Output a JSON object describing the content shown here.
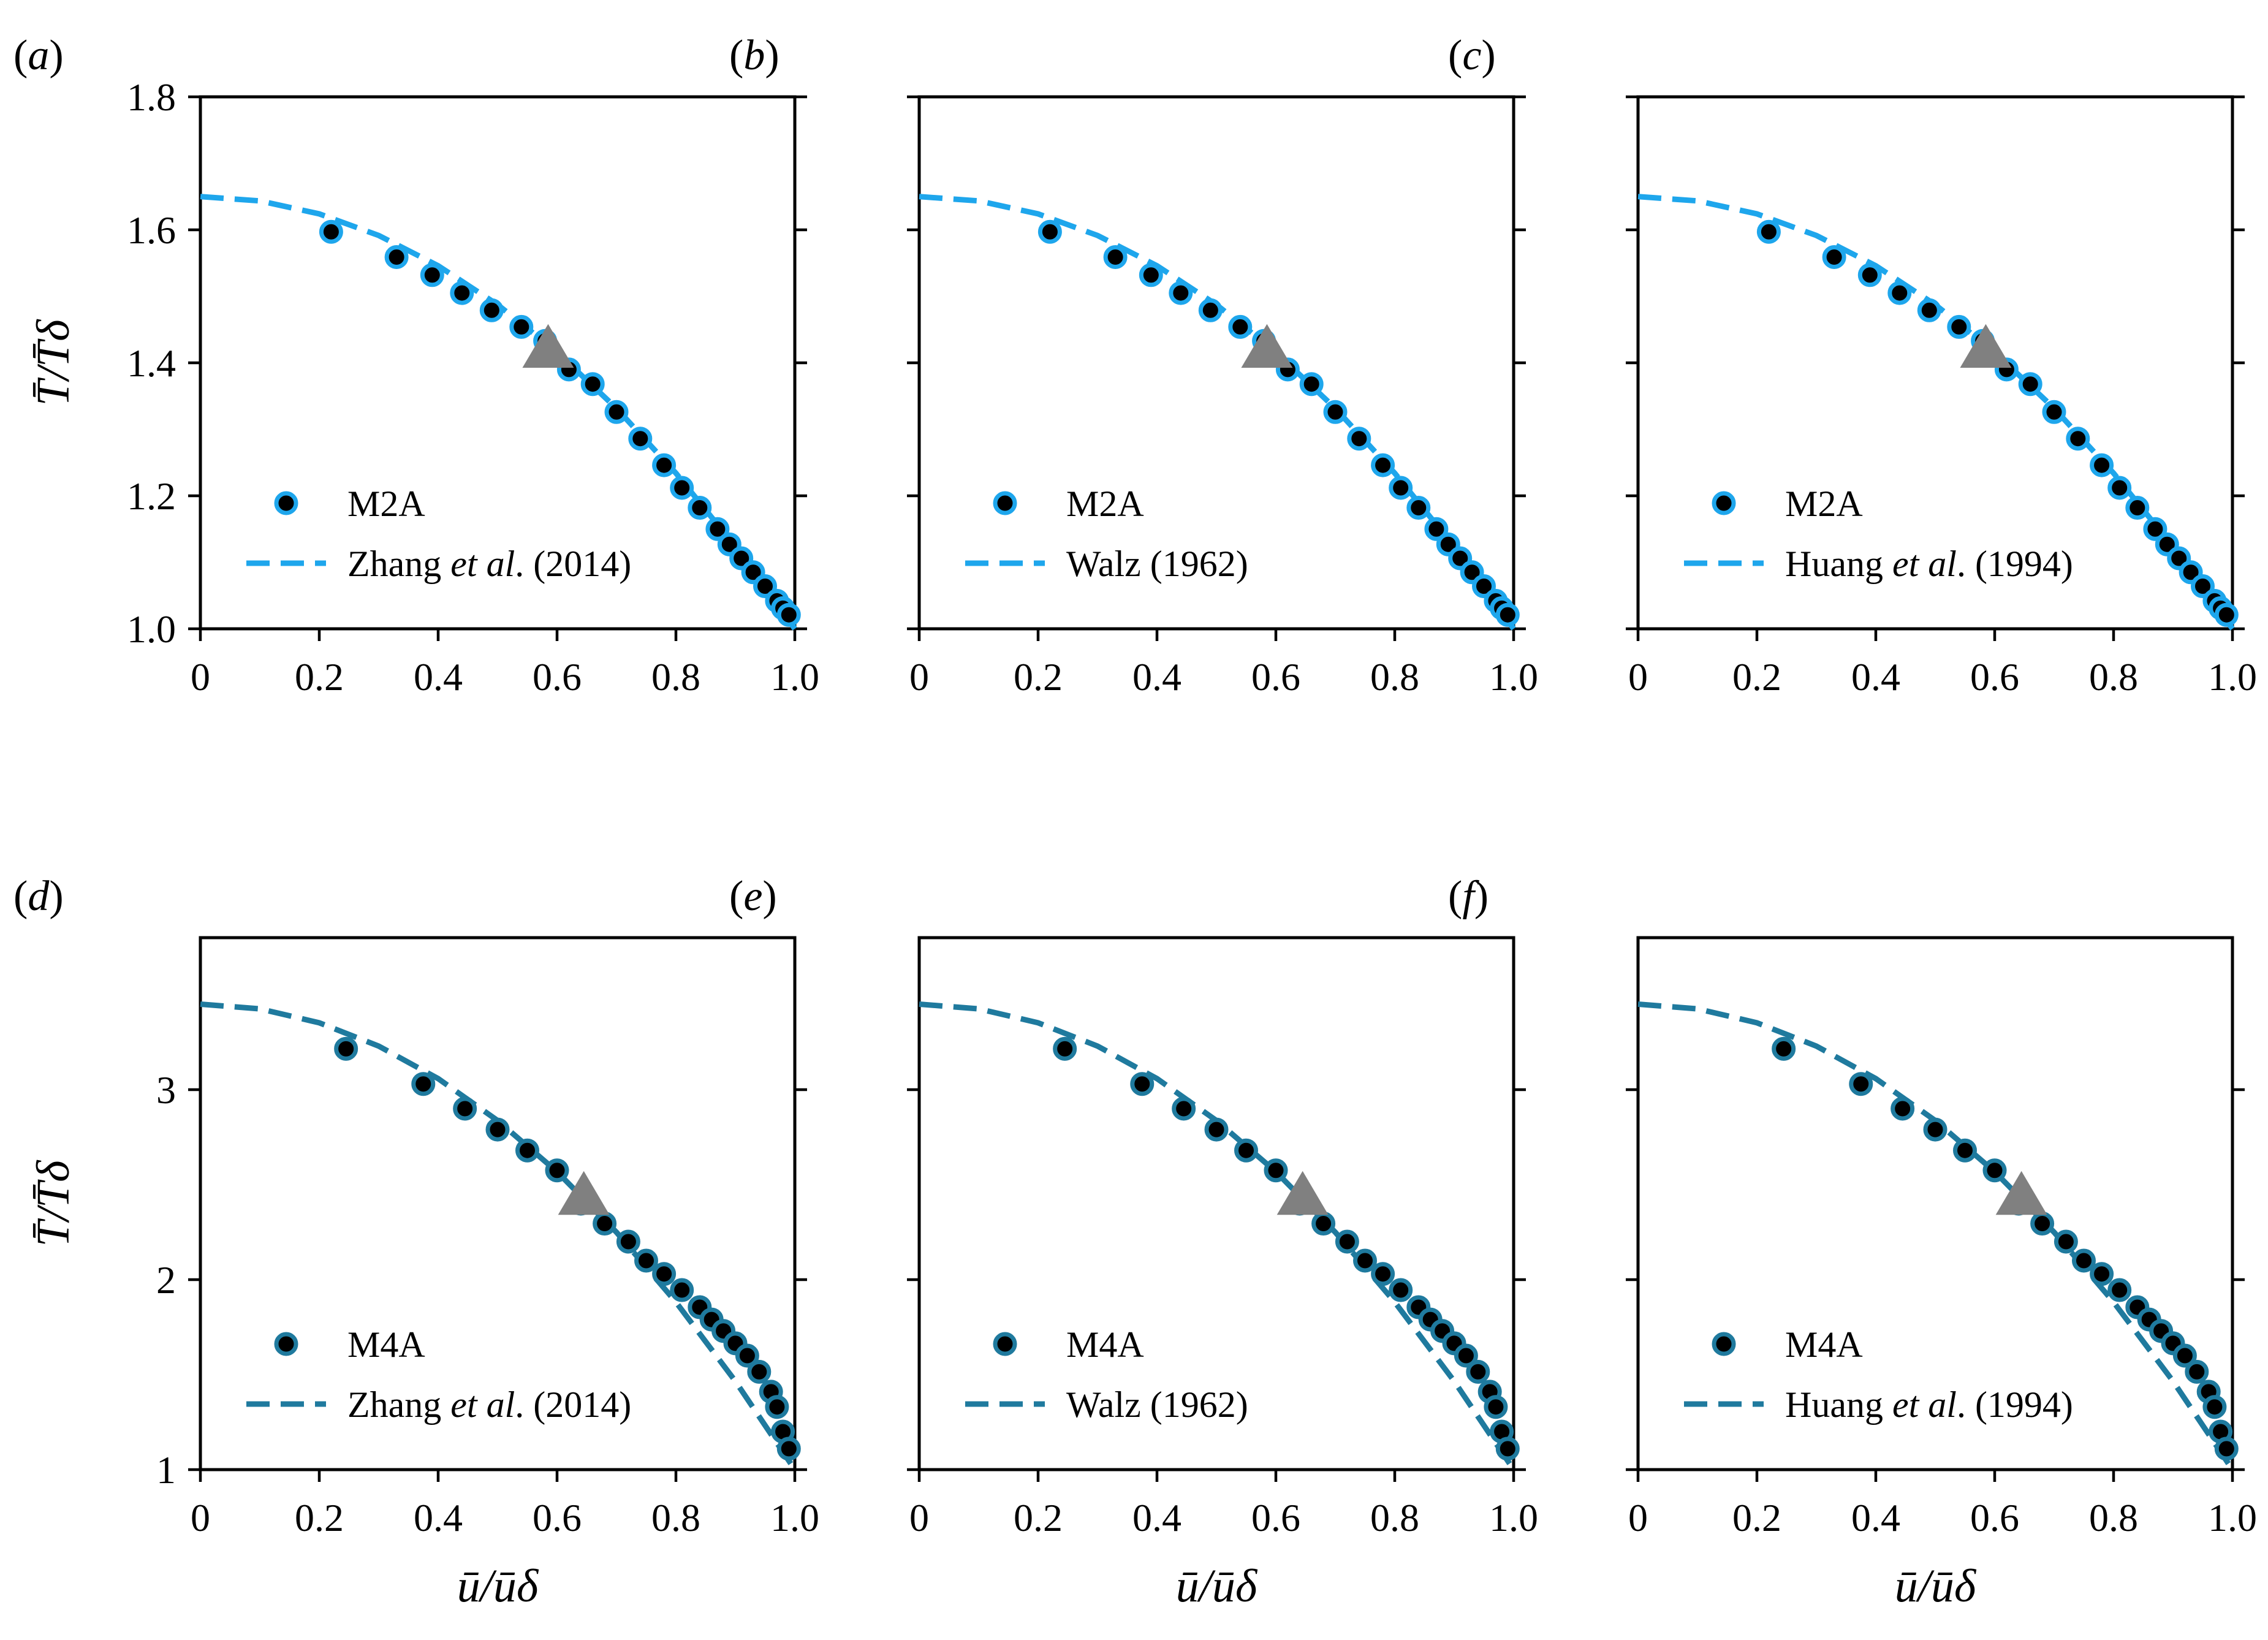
{
  "chart_data": [
    {
      "type": "scatter",
      "panel": "(a)",
      "ylabel": "T̄/T̄δ",
      "xlabel": "",
      "xlim": [
        0,
        1.0
      ],
      "ylim": [
        1.0,
        1.8
      ],
      "xticks": [
        "0",
        "0.2",
        "0.4",
        "0.6",
        "0.8",
        "1.0"
      ],
      "yticks": [
        "1.0",
        "1.2",
        "1.4",
        "1.6",
        "1.8"
      ],
      "legend_position": "lower-left",
      "series": [
        {
          "name": "M2A",
          "kind": "markers",
          "color": "#1ea6ec",
          "x": [
            0.22,
            0.33,
            0.39,
            0.44,
            0.49,
            0.54,
            0.58,
            0.62,
            0.66,
            0.7,
            0.74,
            0.78,
            0.81,
            0.84,
            0.87,
            0.89,
            0.91,
            0.93,
            0.95,
            0.97,
            0.98,
            0.99
          ],
          "y": [
            1.597,
            1.559,
            1.532,
            1.505,
            1.479,
            1.454,
            1.433,
            1.39,
            1.368,
            1.326,
            1.286,
            1.246,
            1.212,
            1.182,
            1.15,
            1.127,
            1.106,
            1.085,
            1.064,
            1.042,
            1.031,
            1.021
          ]
        },
        {
          "name": "Zhang et al. (2014)",
          "kind": "dashed-line",
          "color": "#1ea6ec",
          "x": [
            0,
            0.1,
            0.2,
            0.3,
            0.4,
            0.5,
            0.6,
            0.7,
            0.8,
            0.9,
            1.0
          ],
          "y": [
            1.65,
            1.6435,
            1.624,
            1.5915,
            1.546,
            1.4875,
            1.416,
            1.3315,
            1.234,
            1.1235,
            1.0
          ]
        },
        {
          "name": "",
          "kind": "triangle-marker",
          "color": "#808080",
          "x": [
            0.585
          ],
          "y": [
            1.415
          ]
        }
      ]
    },
    {
      "type": "scatter",
      "panel": "(b)",
      "ylabel": "",
      "xlabel": "",
      "xlim": [
        0,
        1.0
      ],
      "ylim": [
        1.0,
        1.8
      ],
      "xticks": [
        "0",
        "0.2",
        "0.4",
        "0.6",
        "0.8",
        "1.0"
      ],
      "yticks": [],
      "legend_position": "lower-left",
      "series": [
        {
          "name": "M2A",
          "kind": "markers",
          "color": "#1ea6ec",
          "x": [
            0.22,
            0.33,
            0.39,
            0.44,
            0.49,
            0.54,
            0.58,
            0.62,
            0.66,
            0.7,
            0.74,
            0.78,
            0.81,
            0.84,
            0.87,
            0.89,
            0.91,
            0.93,
            0.95,
            0.97,
            0.98,
            0.99
          ],
          "y": [
            1.597,
            1.559,
            1.532,
            1.505,
            1.479,
            1.454,
            1.433,
            1.39,
            1.368,
            1.326,
            1.286,
            1.246,
            1.212,
            1.182,
            1.15,
            1.127,
            1.106,
            1.085,
            1.064,
            1.042,
            1.031,
            1.021
          ]
        },
        {
          "name": "Walz (1962)",
          "kind": "dashed-line",
          "color": "#1ea6ec",
          "x": [
            0,
            0.1,
            0.2,
            0.3,
            0.4,
            0.5,
            0.6,
            0.7,
            0.8,
            0.9,
            1.0
          ],
          "y": [
            1.65,
            1.6435,
            1.624,
            1.5915,
            1.546,
            1.4875,
            1.416,
            1.3315,
            1.234,
            1.1235,
            1.0
          ]
        },
        {
          "name": "",
          "kind": "triangle-marker",
          "color": "#808080",
          "x": [
            0.585
          ],
          "y": [
            1.415
          ]
        }
      ]
    },
    {
      "type": "scatter",
      "panel": "(c)",
      "ylabel": "",
      "xlabel": "",
      "xlim": [
        0,
        1.0
      ],
      "ylim": [
        1.0,
        1.8
      ],
      "xticks": [
        "0",
        "0.2",
        "0.4",
        "0.6",
        "0.8",
        "1.0"
      ],
      "yticks": [],
      "legend_position": "lower-left",
      "series": [
        {
          "name": "M2A",
          "kind": "markers",
          "color": "#1ea6ec",
          "x": [
            0.22,
            0.33,
            0.39,
            0.44,
            0.49,
            0.54,
            0.58,
            0.62,
            0.66,
            0.7,
            0.74,
            0.78,
            0.81,
            0.84,
            0.87,
            0.89,
            0.91,
            0.93,
            0.95,
            0.97,
            0.98,
            0.99
          ],
          "y": [
            1.597,
            1.559,
            1.532,
            1.505,
            1.479,
            1.454,
            1.433,
            1.39,
            1.368,
            1.326,
            1.286,
            1.246,
            1.212,
            1.182,
            1.15,
            1.127,
            1.106,
            1.085,
            1.064,
            1.042,
            1.031,
            1.021
          ]
        },
        {
          "name": "Huang et al. (1994)",
          "kind": "dashed-line",
          "color": "#1ea6ec",
          "x": [
            0,
            0.1,
            0.2,
            0.3,
            0.4,
            0.5,
            0.6,
            0.7,
            0.8,
            0.9,
            1.0
          ],
          "y": [
            1.65,
            1.6435,
            1.624,
            1.5915,
            1.546,
            1.4875,
            1.416,
            1.3315,
            1.234,
            1.1235,
            1.0
          ]
        },
        {
          "name": "",
          "kind": "triangle-marker",
          "color": "#808080",
          "x": [
            0.585
          ],
          "y": [
            1.415
          ]
        }
      ]
    },
    {
      "type": "scatter",
      "panel": "(d)",
      "ylabel": "T̄/T̄δ",
      "xlabel": "ū/ūδ",
      "xlim": [
        0,
        1.0
      ],
      "ylim": [
        1,
        3.8
      ],
      "xticks": [
        "0",
        "0.2",
        "0.4",
        "0.6",
        "0.8",
        "1.0"
      ],
      "yticks": [
        "1",
        "2",
        "3"
      ],
      "legend_position": "lower-left",
      "series": [
        {
          "name": "M4A",
          "kind": "markers",
          "color": "#1f7a9e",
          "x": [
            0.245,
            0.375,
            0.445,
            0.5,
            0.55,
            0.6,
            0.64,
            0.68,
            0.72,
            0.75,
            0.78,
            0.81,
            0.84,
            0.86,
            0.88,
            0.9,
            0.92,
            0.94,
            0.96,
            0.97,
            0.98,
            0.99
          ],
          "y": [
            3.215,
            3.03,
            2.9,
            2.79,
            2.68,
            2.575,
            2.4,
            2.295,
            2.2,
            2.1,
            2.03,
            1.945,
            1.855,
            1.79,
            1.73,
            1.665,
            1.6,
            1.515,
            1.41,
            1.33,
            1.2,
            1.11
          ]
        },
        {
          "name": "Zhang et al. (2014)",
          "kind": "dashed-line",
          "color": "#1f7a9e",
          "x": [
            0,
            0.1,
            0.2,
            0.3,
            0.4,
            0.5,
            0.6,
            0.7,
            0.8,
            0.9,
            1.0
          ],
          "y": [
            3.45,
            3.4255,
            3.352,
            3.2295,
            3.058,
            2.8375,
            2.568,
            2.2495,
            1.882,
            1.4655,
            1.0
          ]
        },
        {
          "name": "",
          "kind": "triangle-marker",
          "color": "#808080",
          "x": [
            0.645
          ],
          "y": [
            2.42
          ]
        }
      ]
    },
    {
      "type": "scatter",
      "panel": "(e)",
      "ylabel": "",
      "xlabel": "ū/ūδ",
      "xlim": [
        0,
        1.0
      ],
      "ylim": [
        1,
        3.8
      ],
      "xticks": [
        "0",
        "0.2",
        "0.4",
        "0.6",
        "0.8",
        "1.0"
      ],
      "yticks": [],
      "legend_position": "lower-left",
      "series": [
        {
          "name": "M4A",
          "kind": "markers",
          "color": "#1f7a9e",
          "x": [
            0.245,
            0.375,
            0.445,
            0.5,
            0.55,
            0.6,
            0.64,
            0.68,
            0.72,
            0.75,
            0.78,
            0.81,
            0.84,
            0.86,
            0.88,
            0.9,
            0.92,
            0.94,
            0.96,
            0.97,
            0.98,
            0.99
          ],
          "y": [
            3.215,
            3.03,
            2.9,
            2.79,
            2.68,
            2.575,
            2.4,
            2.295,
            2.2,
            2.1,
            2.03,
            1.945,
            1.855,
            1.79,
            1.73,
            1.665,
            1.6,
            1.515,
            1.41,
            1.33,
            1.2,
            1.11
          ]
        },
        {
          "name": "Walz (1962)",
          "kind": "dashed-line",
          "color": "#1f7a9e",
          "x": [
            0,
            0.1,
            0.2,
            0.3,
            0.4,
            0.5,
            0.6,
            0.7,
            0.8,
            0.9,
            1.0
          ],
          "y": [
            3.45,
            3.4255,
            3.352,
            3.2295,
            3.058,
            2.8375,
            2.568,
            2.2495,
            1.882,
            1.4655,
            1.0
          ]
        },
        {
          "name": "",
          "kind": "triangle-marker",
          "color": "#808080",
          "x": [
            0.645
          ],
          "y": [
            2.42
          ]
        }
      ]
    },
    {
      "type": "scatter",
      "panel": "(f)",
      "ylabel": "",
      "xlabel": "ū/ūδ",
      "xlim": [
        0,
        1.0
      ],
      "ylim": [
        1,
        3.8
      ],
      "xticks": [
        "0",
        "0.2",
        "0.4",
        "0.6",
        "0.8",
        "1.0"
      ],
      "yticks": [],
      "legend_position": "lower-left",
      "series": [
        {
          "name": "M4A",
          "kind": "markers",
          "color": "#1f7a9e",
          "x": [
            0.245,
            0.375,
            0.445,
            0.5,
            0.55,
            0.6,
            0.64,
            0.68,
            0.72,
            0.75,
            0.78,
            0.81,
            0.84,
            0.86,
            0.88,
            0.9,
            0.92,
            0.94,
            0.96,
            0.97,
            0.98,
            0.99
          ],
          "y": [
            3.215,
            3.03,
            2.9,
            2.79,
            2.68,
            2.575,
            2.4,
            2.295,
            2.2,
            2.1,
            2.03,
            1.945,
            1.855,
            1.79,
            1.73,
            1.665,
            1.6,
            1.515,
            1.41,
            1.33,
            1.2,
            1.11
          ]
        },
        {
          "name": "Huang et al. (1994)",
          "kind": "dashed-line",
          "color": "#1f7a9e",
          "x": [
            0,
            0.1,
            0.2,
            0.3,
            0.4,
            0.5,
            0.6,
            0.7,
            0.8,
            0.9,
            1.0
          ],
          "y": [
            3.45,
            3.4255,
            3.352,
            3.2295,
            3.058,
            2.8375,
            2.568,
            2.2495,
            1.882,
            1.4655,
            1.0
          ]
        },
        {
          "name": "",
          "kind": "triangle-marker",
          "color": "#808080",
          "x": [
            0.645
          ],
          "y": [
            2.42
          ]
        }
      ]
    }
  ]
}
